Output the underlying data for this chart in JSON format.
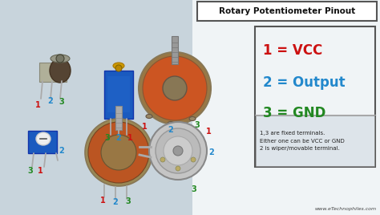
{
  "title": "Rotary Potentiometer Pinout",
  "bg_color": "#c8d4dc",
  "right_panel_color": "#f0f4f6",
  "right_panel_border": "#555555",
  "pin1_label": "1 = VCC",
  "pin2_label": "2 = Output",
  "pin3_label": "3 = GND",
  "pin1_color": "#cc1111",
  "pin2_color": "#2288cc",
  "pin3_color": "#228822",
  "note_text": "1,3 are fixed terminals.\nEither one can be VCC or GND\n2 is wiper/movable terminal.",
  "note_bg": "#dde4ea",
  "note_border": "#888888",
  "note_color": "#222222",
  "website": "www.eTechnophiles.com",
  "website_color": "#444444",
  "title_bg": "#ffffff",
  "title_border": "#555555",
  "title_color": "#111111",
  "label_1_color": "#cc1111",
  "label_2_color": "#2288cc",
  "label_3_color": "#228822",
  "figsize": [
    4.74,
    2.68
  ],
  "dpi": 100
}
